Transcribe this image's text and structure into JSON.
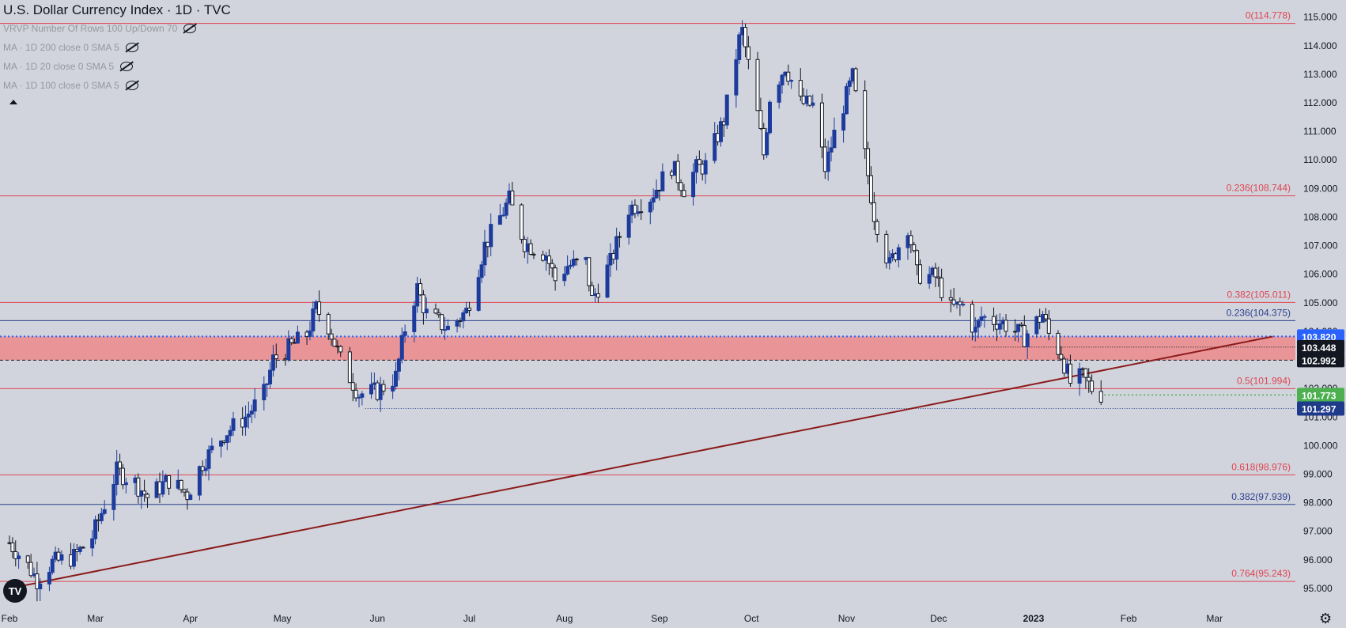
{
  "header": {
    "title": "U.S. Dollar Currency Index · 1D · TVC",
    "indicators": [
      "VRVP Number Of Rows 100 Up/Down 70",
      "MA · 1D 200 close 0 SMA 5",
      "MA · 1D 20 close 0 SMA 5",
      "MA · 1D 100 close 0 SMA 5"
    ]
  },
  "colors": {
    "background": "#d1d4dc",
    "up_candle": "#1c3b9c",
    "down_candle": "#131722",
    "fib_red": "#e04452",
    "fib_blue": "#2b3f8f",
    "trendline": "#8b1a1a",
    "zone": "#f08080"
  },
  "chart_data": {
    "type": "candlestick",
    "symbol": "U.S. Dollar Currency Index",
    "timeframe": "1D",
    "ylim": [
      94.5,
      115.6
    ],
    "y_ticks": [
      "115.000",
      "114.000",
      "113.000",
      "112.000",
      "111.000",
      "110.000",
      "109.000",
      "108.000",
      "107.000",
      "106.000",
      "105.000",
      "104.000",
      "103.000",
      "102.000",
      "101.000",
      "100.000",
      "99.000",
      "98.000",
      "97.000",
      "96.000",
      "95.000"
    ],
    "x_ticks": [
      "Feb",
      "Mar",
      "Apr",
      "May",
      "Jun",
      "Jul",
      "Aug",
      "Sep",
      "Oct",
      "Nov",
      "Dec",
      "2023",
      "Feb",
      "Mar"
    ],
    "price_path": [
      [
        "2022-02-01",
        96.6
      ],
      [
        "2022-02-07",
        95.8
      ],
      [
        "2022-02-10",
        95.3
      ],
      [
        "2022-02-15",
        95.9
      ],
      [
        "2022-02-22",
        96.1
      ],
      [
        "2022-02-28",
        96.8
      ],
      [
        "2022-03-07",
        98.8
      ],
      [
        "2022-03-08",
        99.1
      ],
      [
        "2022-03-14",
        98.7
      ],
      [
        "2022-03-18",
        98.2
      ],
      [
        "2022-03-25",
        98.8
      ],
      [
        "2022-03-31",
        98.3
      ],
      [
        "2022-04-05",
        99.4
      ],
      [
        "2022-04-12",
        100.4
      ],
      [
        "2022-04-19",
        101.0
      ],
      [
        "2022-04-25",
        101.8
      ],
      [
        "2022-04-28",
        103.0
      ],
      [
        "2022-05-03",
        103.4
      ],
      [
        "2022-05-09",
        103.9
      ],
      [
        "2022-05-12",
        104.8
      ],
      [
        "2022-05-16",
        104.2
      ],
      [
        "2022-05-20",
        103.0
      ],
      [
        "2022-05-26",
        101.8
      ],
      [
        "2022-06-01",
        101.9
      ],
      [
        "2022-06-07",
        102.4
      ],
      [
        "2022-06-10",
        104.1
      ],
      [
        "2022-06-14",
        105.5
      ],
      [
        "2022-06-17",
        104.6
      ],
      [
        "2022-06-24",
        104.1
      ],
      [
        "2022-06-30",
        104.7
      ],
      [
        "2022-07-06",
        107.0
      ],
      [
        "2022-07-12",
        108.2
      ],
      [
        "2022-07-14",
        108.6
      ],
      [
        "2022-07-19",
        107.1
      ],
      [
        "2022-07-26",
        106.7
      ],
      [
        "2022-07-29",
        105.8
      ],
      [
        "2022-08-02",
        106.3
      ],
      [
        "2022-08-08",
        106.4
      ],
      [
        "2022-08-10",
        105.1
      ],
      [
        "2022-08-16",
        106.4
      ],
      [
        "2022-08-22",
        108.3
      ],
      [
        "2022-08-29",
        108.7
      ],
      [
        "2022-09-05",
        109.8
      ],
      [
        "2022-09-09",
        109.0
      ],
      [
        "2022-09-13",
        109.7
      ],
      [
        "2022-09-16",
        109.8
      ],
      [
        "2022-09-22",
        111.4
      ],
      [
        "2022-09-27",
        114.2
      ],
      [
        "2022-09-28",
        114.5
      ],
      [
        "2022-10-03",
        111.6
      ],
      [
        "2022-10-05",
        110.2
      ],
      [
        "2022-10-07",
        112.2
      ],
      [
        "2022-10-12",
        113.3
      ],
      [
        "2022-10-17",
        112.0
      ],
      [
        "2022-10-21",
        111.9
      ],
      [
        "2022-10-25",
        109.7
      ],
      [
        "2022-10-28",
        110.9
      ],
      [
        "2022-11-03",
        112.9
      ],
      [
        "2022-11-10",
        108.1
      ],
      [
        "2022-11-15",
        106.3
      ],
      [
        "2022-11-21",
        107.7
      ],
      [
        "2022-11-24",
        106.0
      ],
      [
        "2022-11-30",
        105.9
      ],
      [
        "2022-12-05",
        104.8
      ],
      [
        "2022-12-09",
        104.9
      ],
      [
        "2022-12-13",
        104.0
      ],
      [
        "2022-12-15",
        104.5
      ],
      [
        "2022-12-22",
        104.3
      ],
      [
        "2022-12-29",
        103.8
      ],
      [
        "2023-01-04",
        104.6
      ],
      [
        "2023-01-06",
        103.9
      ],
      [
        "2023-01-10",
        103.2
      ],
      [
        "2023-01-13",
        102.2
      ],
      [
        "2023-01-17",
        102.4
      ],
      [
        "2023-01-20",
        102.0
      ],
      [
        "2023-01-23",
        101.8
      ]
    ],
    "horizontal_levels": [
      {
        "label": "0(114.778)",
        "value": 114.778,
        "color": "red"
      },
      {
        "label": "0.236(108.744)",
        "value": 108.744,
        "color": "red"
      },
      {
        "label": "0.382(105.011)",
        "value": 105.011,
        "color": "red"
      },
      {
        "label": "0.236(104.375)",
        "value": 104.375,
        "color": "blue"
      },
      {
        "label": "0.5(101.994)",
        "value": 101.994,
        "color": "red"
      },
      {
        "label": "0.618(98.976)",
        "value": 98.976,
        "color": "red"
      },
      {
        "label": "0.382(97.939)",
        "value": 97.939,
        "color": "blue"
      },
      {
        "label": "0.764(95.243)",
        "value": 95.243,
        "color": "red"
      }
    ],
    "zone": {
      "from": 102.992,
      "to": 103.82
    },
    "trendline": [
      [
        "2022-02-01",
        95.0
      ],
      [
        "2023-03-20",
        103.82
      ]
    ],
    "price_tags": [
      {
        "label": "103.820",
        "value": 103.82,
        "bg": "#2962ff"
      },
      {
        "label": "103.448",
        "value": 103.448,
        "bg": "#131722"
      },
      {
        "label": "102.992",
        "value": 102.992,
        "bg": "#131722"
      },
      {
        "label": "101.773",
        "value": 101.773,
        "bg": "#4caf50"
      },
      {
        "label": "101.297",
        "value": 101.297,
        "bg": "#1e3a8a"
      }
    ],
    "last_price": 101.773,
    "support_dotted": 101.297
  }
}
